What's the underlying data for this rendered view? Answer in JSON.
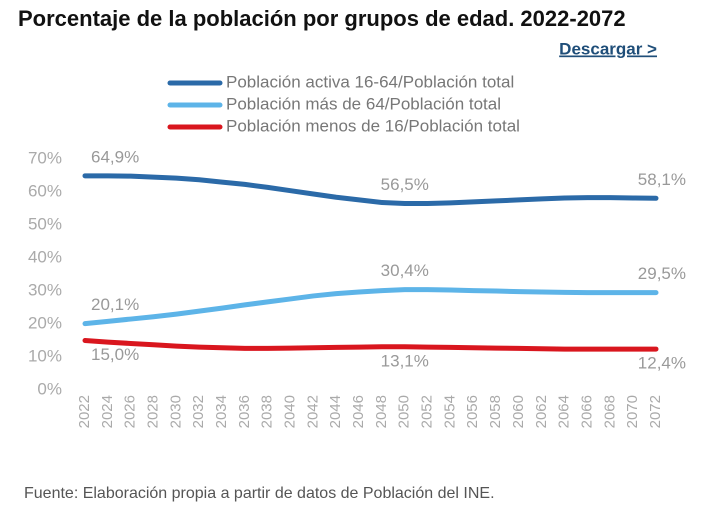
{
  "chart_data": {
    "type": "line",
    "title": "Porcentaje de la población por grupos de edad. 2022-2072",
    "download_link": "Descargar >",
    "source": "Fuente: Elaboración propia a partir de datos de Población del INE.",
    "categories": [
      "2022",
      "2024",
      "2026",
      "2028",
      "2030",
      "2032",
      "2034",
      "2036",
      "2038",
      "2040",
      "2042",
      "2044",
      "2046",
      "2048",
      "2050",
      "2052",
      "2054",
      "2056",
      "2058",
      "2060",
      "2062",
      "2064",
      "2066",
      "2068",
      "2070",
      "2072"
    ],
    "ylim": [
      0,
      70
    ],
    "yticks": [
      {
        "value": 0,
        "label": "0%"
      },
      {
        "value": 10,
        "label": "10%"
      },
      {
        "value": 20,
        "label": "20%"
      },
      {
        "value": 30,
        "label": "30%"
      },
      {
        "value": 40,
        "label": "40%"
      },
      {
        "value": 50,
        "label": "50%"
      },
      {
        "value": 60,
        "label": "60%"
      },
      {
        "value": 70,
        "label": "70%"
      }
    ],
    "grid": false,
    "series": [
      {
        "name": "Población activa 16-64/Población total",
        "color": "#2b6aa8",
        "values": [
          64.9,
          64.9,
          64.8,
          64.5,
          64.2,
          63.7,
          63.0,
          62.3,
          61.4,
          60.4,
          59.4,
          58.4,
          57.6,
          56.8,
          56.5,
          56.5,
          56.7,
          57.0,
          57.3,
          57.6,
          57.9,
          58.2,
          58.3,
          58.3,
          58.2,
          58.1
        ],
        "value_labels": [
          "64,9%",
          null,
          null,
          null,
          null,
          null,
          null,
          null,
          null,
          null,
          null,
          null,
          null,
          null,
          "56,5%",
          null,
          null,
          null,
          null,
          null,
          null,
          null,
          null,
          null,
          null,
          "58,1%"
        ]
      },
      {
        "name": "Población más de 64/Población total",
        "color": "#5db4e8",
        "values": [
          20.1,
          20.8,
          21.5,
          22.2,
          23.0,
          23.9,
          24.8,
          25.8,
          26.7,
          27.6,
          28.5,
          29.2,
          29.7,
          30.1,
          30.4,
          30.4,
          30.3,
          30.1,
          30.0,
          29.8,
          29.7,
          29.6,
          29.5,
          29.5,
          29.5,
          29.5
        ],
        "value_labels": [
          "20,1%",
          null,
          null,
          null,
          null,
          null,
          null,
          null,
          null,
          null,
          null,
          null,
          null,
          null,
          "30,4%",
          null,
          null,
          null,
          null,
          null,
          null,
          null,
          null,
          null,
          null,
          "29,5%"
        ]
      },
      {
        "name": "Población menos de 16/Población total",
        "color": "#d9161e",
        "values": [
          15.0,
          14.5,
          14.1,
          13.7,
          13.3,
          13.0,
          12.8,
          12.6,
          12.6,
          12.7,
          12.8,
          12.9,
          13.0,
          13.1,
          13.1,
          13.0,
          12.9,
          12.8,
          12.7,
          12.6,
          12.5,
          12.4,
          12.4,
          12.4,
          12.4,
          12.4
        ],
        "value_labels": [
          "15,0%",
          null,
          null,
          null,
          null,
          null,
          null,
          null,
          null,
          null,
          null,
          null,
          null,
          null,
          "13,1%",
          null,
          null,
          null,
          null,
          null,
          null,
          null,
          null,
          null,
          null,
          "12,4%"
        ]
      }
    ]
  }
}
